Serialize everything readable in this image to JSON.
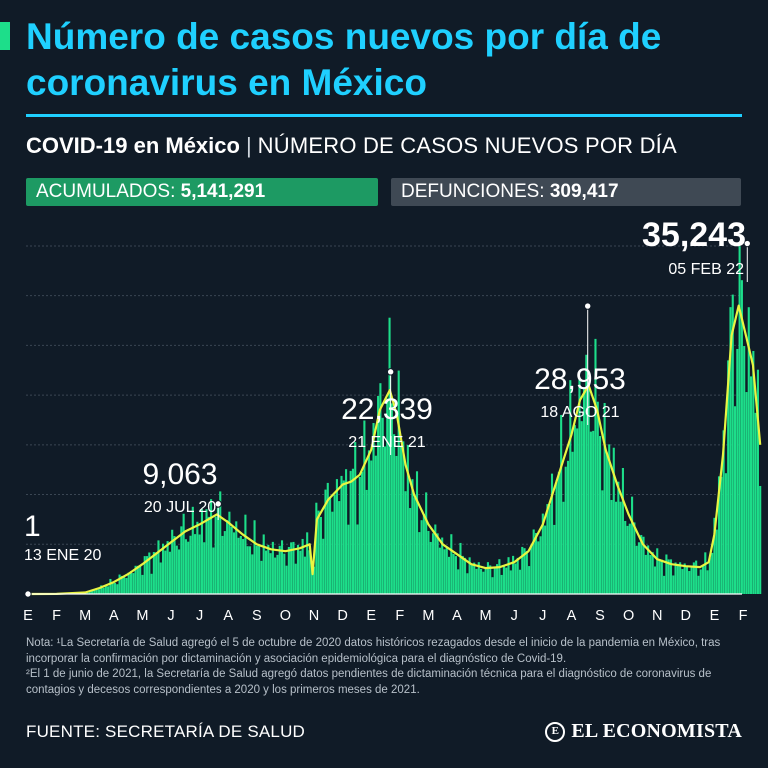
{
  "title": "Número de casos nuevos por día de coronavirus en México",
  "subtitle": {
    "bold": "COVID-19 en México",
    "separator": "|",
    "desc": "NÚMERO DE CASOS NUEVOS POR DÍA"
  },
  "stats": {
    "accumulated_label": "ACUMULADOS:",
    "accumulated_value": "5,141,291",
    "deaths_label": "DEFUNCIONES:",
    "deaths_value": "309,417"
  },
  "colors": {
    "accent": "#1fd0ff",
    "bars": "#1dde8a",
    "line": "#e9f542",
    "green_badge": "#1d9a63",
    "gray_badge": "#3f4954",
    "background": "#101b27"
  },
  "chart_data": {
    "type": "bar",
    "series": [
      {
        "kind": "bar",
        "description": "daily new cases"
      },
      {
        "kind": "line",
        "description": "smoothed trend"
      }
    ],
    "ylim": [
      0,
      36000
    ],
    "grid": true,
    "months": [
      "E",
      "F",
      "M",
      "A",
      "M",
      "J",
      "J",
      "A",
      "S",
      "O",
      "N",
      "D",
      "E",
      "F",
      "M",
      "A",
      "M",
      "J",
      "J",
      "A",
      "S",
      "O",
      "N",
      "D",
      "E",
      "F"
    ],
    "trend": [
      {
        "m": 0.0,
        "v": 0
      },
      {
        "m": 1.0,
        "v": 10
      },
      {
        "m": 2.0,
        "v": 150
      },
      {
        "m": 2.5,
        "v": 600
      },
      {
        "m": 3.0,
        "v": 1200
      },
      {
        "m": 3.5,
        "v": 2000
      },
      {
        "m": 4.0,
        "v": 3000
      },
      {
        "m": 4.5,
        "v": 4100
      },
      {
        "m": 5.0,
        "v": 5200
      },
      {
        "m": 5.5,
        "v": 6300
      },
      {
        "m": 6.0,
        "v": 7000
      },
      {
        "m": 6.6,
        "v": 8000
      },
      {
        "m": 7.0,
        "v": 7200
      },
      {
        "m": 7.5,
        "v": 6000
      },
      {
        "m": 8.0,
        "v": 5000
      },
      {
        "m": 8.5,
        "v": 4500
      },
      {
        "m": 9.0,
        "v": 4300
      },
      {
        "m": 9.5,
        "v": 4600
      },
      {
        "m": 9.85,
        "v": 5000
      },
      {
        "m": 9.95,
        "v": 2000
      },
      {
        "m": 10.1,
        "v": 7500
      },
      {
        "m": 10.5,
        "v": 9500
      },
      {
        "m": 11.0,
        "v": 11000
      },
      {
        "m": 11.3,
        "v": 11300
      },
      {
        "m": 11.6,
        "v": 12000
      },
      {
        "m": 12.0,
        "v": 14500
      },
      {
        "m": 12.3,
        "v": 18500
      },
      {
        "m": 12.65,
        "v": 20500
      },
      {
        "m": 12.9,
        "v": 18000
      },
      {
        "m": 13.2,
        "v": 13000
      },
      {
        "m": 13.5,
        "v": 10000
      },
      {
        "m": 14.0,
        "v": 7000
      },
      {
        "m": 14.5,
        "v": 5000
      },
      {
        "m": 15.0,
        "v": 4000
      },
      {
        "m": 15.5,
        "v": 3000
      },
      {
        "m": 16.0,
        "v": 2600
      },
      {
        "m": 16.5,
        "v": 2700
      },
      {
        "m": 17.0,
        "v": 3200
      },
      {
        "m": 17.5,
        "v": 4300
      },
      {
        "m": 18.0,
        "v": 7000
      },
      {
        "m": 18.5,
        "v": 11500
      },
      {
        "m": 19.0,
        "v": 16000
      },
      {
        "m": 19.3,
        "v": 19500
      },
      {
        "m": 19.6,
        "v": 21000
      },
      {
        "m": 19.9,
        "v": 18500
      },
      {
        "m": 20.2,
        "v": 14500
      },
      {
        "m": 20.6,
        "v": 11000
      },
      {
        "m": 21.0,
        "v": 8000
      },
      {
        "m": 21.5,
        "v": 5000
      },
      {
        "m": 22.0,
        "v": 3500
      },
      {
        "m": 22.5,
        "v": 3000
      },
      {
        "m": 23.0,
        "v": 2800
      },
      {
        "m": 23.5,
        "v": 2700
      },
      {
        "m": 23.8,
        "v": 3200
      },
      {
        "m": 24.0,
        "v": 6000
      },
      {
        "m": 24.3,
        "v": 14000
      },
      {
        "m": 24.6,
        "v": 26000
      },
      {
        "m": 24.85,
        "v": 29000
      },
      {
        "m": 25.1,
        "v": 26000
      },
      {
        "m": 25.35,
        "v": 23000
      },
      {
        "m": 25.6,
        "v": 15000
      }
    ],
    "annotations": [
      {
        "value": "1",
        "date": "13 ENE 20",
        "m": 0.0,
        "y": 1
      },
      {
        "value": "9,063",
        "date": "20 JUL 20",
        "m": 6.65,
        "y": 9063
      },
      {
        "value": "22,339",
        "date": "21 ENE 21",
        "m": 12.68,
        "y": 22339
      },
      {
        "value": "28,953",
        "date": "18 AGO 21",
        "m": 19.57,
        "y": 28953
      },
      {
        "value": "35,243",
        "date": "05 FEB 22",
        "m": 25.15,
        "y": 35243
      }
    ]
  },
  "note": {
    "line1": "Nota: ¹La Secretaría de Salud agregó el 5 de octubre de 2020 datos históricos rezagados desde el inicio de la pandemia en México, tras incorporar la confirmación por dictaminación y asociación epidemiológica para el diagnóstico de Covid-19.",
    "line2": "²El 1 de junio de 2021, la Secretaría de Salud agregó datos pendientes de dictaminación técnica para el diagnóstico de coronavirus de contagios y decesos correspondientes a 2020 y los primeros meses de 2021."
  },
  "source": "FUENTE: SECRETARÍA DE SALUD",
  "logo": "EL ECONOMISTA",
  "logo_mark": "E"
}
